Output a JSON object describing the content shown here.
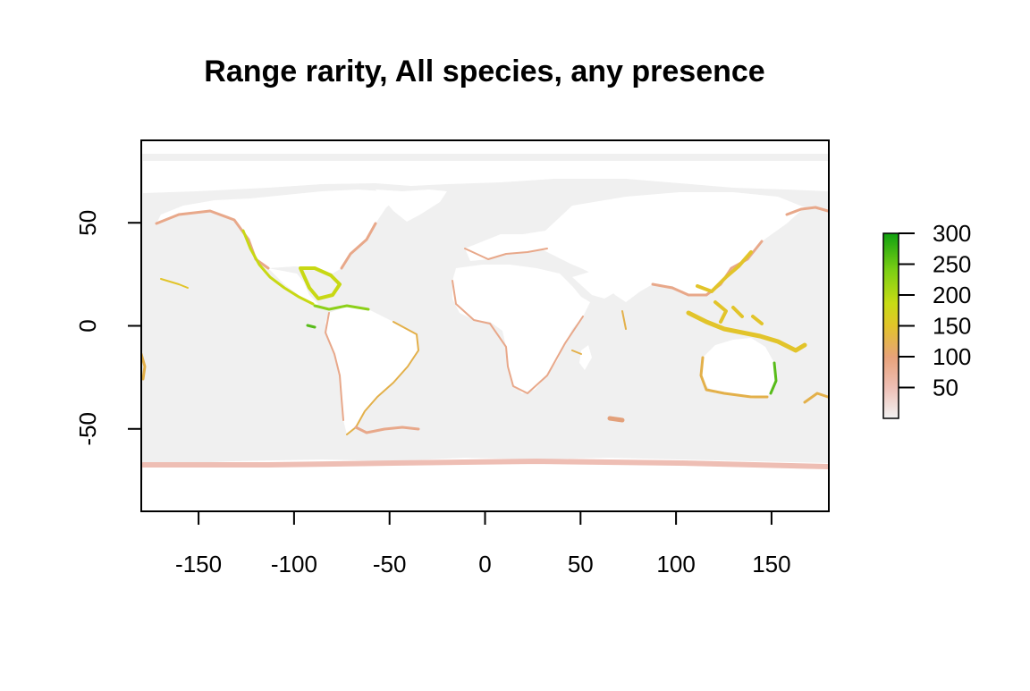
{
  "title": "Range rarity, All species, any presence",
  "chart_data": {
    "type": "heatmap",
    "title": "Range rarity, All species, any presence",
    "xlim": [
      -180,
      180
    ],
    "ylim": [
      -90,
      90
    ],
    "x_ticks": [
      "-150",
      "-100",
      "-50",
      "0",
      "50",
      "100",
      "150"
    ],
    "y_ticks": [
      "50",
      "0",
      "-50"
    ],
    "legend": {
      "placement": "right",
      "ticks": [
        "300",
        "250",
        "200",
        "150",
        "100",
        "50"
      ],
      "range": [
        0,
        300
      ],
      "colors": [
        "#f2f2f2",
        "#eebeb4",
        "#e8a27a",
        "#e2c42a",
        "#c8dc14",
        "#7ccf14",
        "#10a010"
      ]
    },
    "background_color": "#f0f0f0",
    "land_color": "#ffffff"
  }
}
